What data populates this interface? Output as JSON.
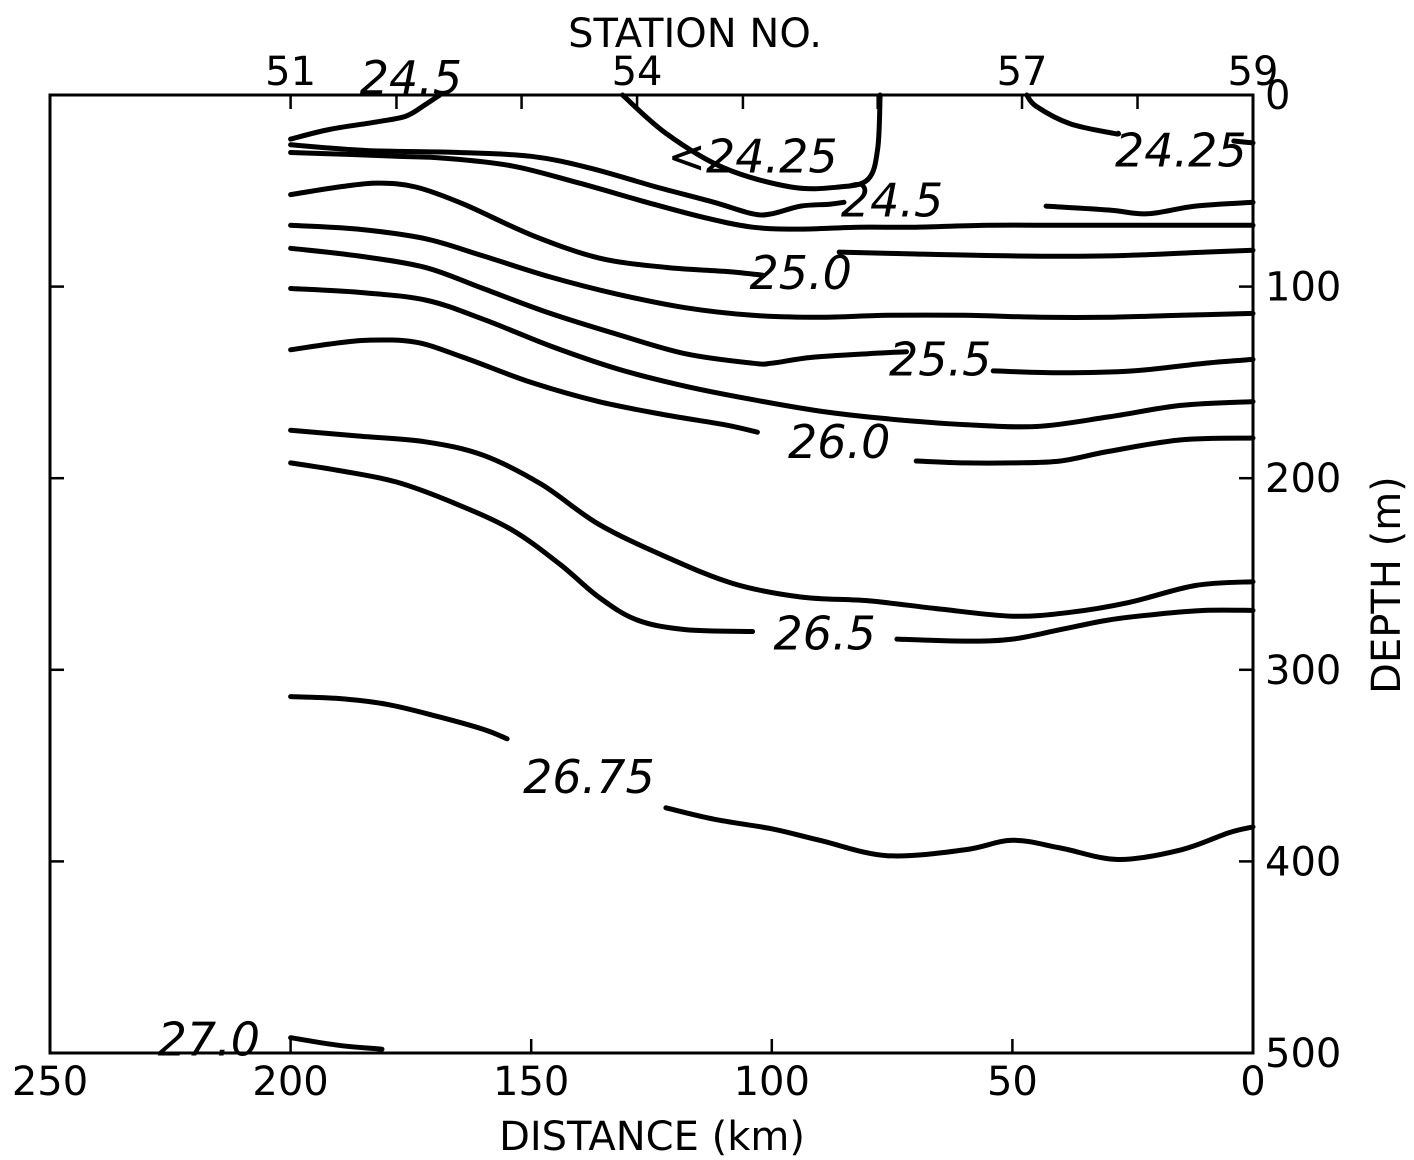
{
  "chart_data": {
    "type": "line",
    "title": "",
    "xlabel": "DISTANCE (km)",
    "ylabel": "DEPTH (m)",
    "top_label": "STATION NO.",
    "xlim": [
      250,
      0
    ],
    "ylim": [
      0,
      500
    ],
    "x_ticks": [
      "250",
      "200",
      "150",
      "100",
      "50",
      "0"
    ],
    "y_ticks": [
      "0",
      "100",
      "200",
      "300",
      "400",
      "500"
    ],
    "stations": [
      {
        "label": "51",
        "x": 200
      },
      {
        "label": "54",
        "x": 128
      },
      {
        "label": "57",
        "x": 48
      },
      {
        "label": "59",
        "x": 0
      }
    ],
    "station_ticks": [
      200,
      178,
      152,
      128,
      106,
      78,
      48,
      24,
      0
    ],
    "series": [
      {
        "name": "24.5",
        "x": [
          200,
          192,
          182,
          176,
          172,
          169
        ],
        "y": [
          23,
          18,
          14,
          11,
          5,
          0
        ]
      },
      {
        "name": "<24.25",
        "x": [
          131,
          122,
          110,
          96,
          86,
          80,
          78,
          77.5
        ],
        "y": [
          0,
          20,
          38,
          48,
          48,
          44,
          28,
          0
        ]
      },
      {
        "name": "24.25",
        "x": [
          47,
          45,
          38,
          29,
          28
        ],
        "y": [
          0,
          6,
          15,
          20,
          20
        ]
      },
      {
        "name": "24.25",
        "x": [
          4,
          0
        ],
        "y": [
          24,
          25
        ]
      },
      {
        "name": "24.5",
        "x": [
          200,
          184,
          165,
          150,
          138,
          124,
          112,
          104,
          100,
          94,
          88,
          85
        ],
        "y": [
          26,
          29,
          30,
          32,
          38,
          48,
          56,
          62,
          62,
          58,
          57,
          56
        ]
      },
      {
        "name": "24.5",
        "x": [
          43,
          30,
          22,
          12,
          0
        ],
        "y": [
          58,
          60,
          62,
          58,
          56
        ]
      },
      {
        "name": "24.5",
        "x": [
          200,
          188,
          178,
          168,
          154,
          140,
          126,
          114,
          104,
          94,
          82,
          70,
          55,
          40,
          20,
          0
        ],
        "y": [
          30,
          31,
          32,
          33,
          37,
          46,
          56,
          64,
          69,
          70,
          69,
          69,
          68,
          68,
          68,
          68
        ]
      },
      {
        "name": "25.0",
        "x": [
          200,
          190,
          182,
          174,
          164,
          150,
          136,
          122,
          110,
          102
        ],
        "y": [
          52,
          48,
          46,
          48,
          57,
          73,
          85,
          90,
          92,
          94
        ]
      },
      {
        "name": "25.0",
        "x": [
          86,
          70,
          50,
          30,
          10,
          0
        ],
        "y": [
          82,
          83,
          84,
          84,
          82,
          81
        ]
      },
      {
        "name": "25.0",
        "x": [
          200,
          186,
          172,
          160,
          146,
          132,
          118,
          104,
          90,
          76,
          60,
          44,
          30,
          15,
          0
        ],
        "y": [
          68,
          70,
          75,
          84,
          95,
          104,
          111,
          115,
          116,
          115,
          115,
          116,
          116,
          115,
          114
        ]
      },
      {
        "name": "25.5",
        "x": [
          200,
          186,
          172,
          160,
          146,
          132,
          118,
          104,
          100,
          92,
          80,
          72
        ],
        "y": [
          80,
          84,
          90,
          101,
          114,
          125,
          135,
          140,
          140,
          137,
          135,
          134
        ]
      },
      {
        "name": "25.5",
        "x": [
          54,
          40,
          25,
          10,
          0
        ],
        "y": [
          144,
          145,
          144,
          140,
          138
        ]
      },
      {
        "name": "25.5",
        "x": [
          200,
          186,
          172,
          160,
          146,
          132,
          118,
          104,
          90,
          76,
          60,
          45,
          30,
          15,
          0
        ],
        "y": [
          101,
          103,
          107,
          117,
          131,
          143,
          152,
          159,
          165,
          169,
          172,
          173,
          168,
          162,
          160
        ]
      },
      {
        "name": "26.0",
        "x": [
          200,
          192,
          184,
          174,
          164,
          150,
          136,
          122,
          110,
          103
        ],
        "y": [
          133,
          130,
          128,
          129,
          137,
          150,
          160,
          167,
          172,
          176
        ]
      },
      {
        "name": "26.0",
        "x": [
          70,
          60,
          50,
          40,
          30,
          15,
          0
        ],
        "y": [
          191,
          192,
          192,
          191,
          186,
          180,
          179
        ]
      },
      {
        "name": "26.0",
        "x": [
          200,
          186,
          172,
          160,
          148,
          136,
          122,
          108,
          94,
          80,
          66,
          50,
          38,
          26,
          12,
          0
        ],
        "y": [
          175,
          178,
          181,
          188,
          203,
          224,
          241,
          255,
          262,
          264,
          268,
          272,
          270,
          265,
          256,
          254
        ]
      },
      {
        "name": "26.5",
        "x": [
          200,
          190,
          178,
          166,
          154,
          144,
          136,
          128,
          118,
          104
        ],
        "y": [
          192,
          196,
          202,
          213,
          227,
          245,
          262,
          274,
          279,
          280
        ]
      },
      {
        "name": "26.5",
        "x": [
          74,
          60,
          50,
          40,
          30,
          20,
          10,
          0
        ],
        "y": [
          284,
          285,
          284,
          279,
          274,
          271,
          269,
          269
        ]
      },
      {
        "name": "26.75",
        "x": [
          200,
          190,
          180,
          170,
          160,
          155
        ],
        "y": [
          314,
          315,
          318,
          324,
          331,
          336
        ]
      },
      {
        "name": "26.75",
        "x": [
          122,
          112,
          100,
          90,
          76,
          60,
          50,
          40,
          28,
          15,
          5,
          0
        ],
        "y": [
          372,
          378,
          383,
          389,
          397,
          394,
          389,
          393,
          399,
          394,
          385,
          382
        ]
      },
      {
        "name": "27.0",
        "x": [
          200,
          190,
          181
        ],
        "y": [
          492,
          496,
          498
        ]
      }
    ],
    "annotations": [
      {
        "text": "24.5",
        "x": 175,
        "y": -9
      },
      {
        "text": "<24.25",
        "x": 104,
        "y": 32
      },
      {
        "text": "24.25",
        "x": 15,
        "y": 29
      },
      {
        "text": "24.5",
        "x": 75,
        "y": 55
      },
      {
        "text": "25.0",
        "x": 94,
        "y": 93
      },
      {
        "text": "25.5",
        "x": 65,
        "y": 138
      },
      {
        "text": "26.0",
        "x": 86,
        "y": 181
      },
      {
        "text": "26.5",
        "x": 89,
        "y": 281
      },
      {
        "text": "26.75",
        "x": 138,
        "y": 356
      },
      {
        "text": "27.0",
        "x": 217,
        "y": 493
      }
    ],
    "grid": false
  }
}
